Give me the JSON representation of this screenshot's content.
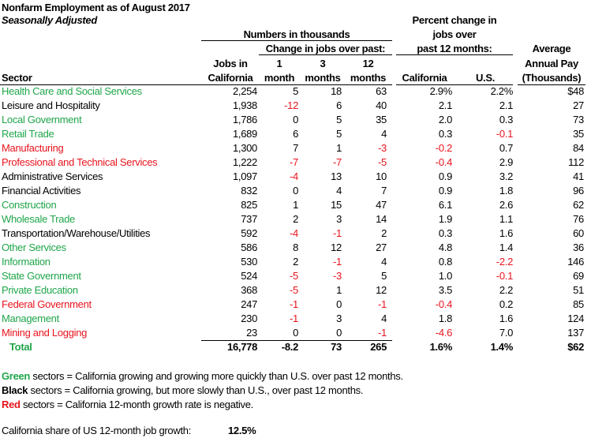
{
  "title": "Nonfarm Employment as of August 2017",
  "subtitle": "Seasonally Adjusted",
  "headers": {
    "numbers_group": "Numbers in thousands",
    "change_group": "Change in jobs over past:",
    "percent_group_1": "Percent change in",
    "percent_group_2": "jobs over",
    "percent_group_3": "past 12 months:",
    "sector": "Sector",
    "jobs_1": "Jobs in",
    "jobs_2": "California",
    "m1_1": "1",
    "m1_2": "month",
    "m3_1": "3",
    "m3_2": "months",
    "m12_1": "12",
    "m12_2": "months",
    "pct_ca": "California",
    "pct_us": "U.S.",
    "pay_1": "Average",
    "pay_2": "Annual Pay",
    "pay_3": "(Thousands)"
  },
  "colors": {
    "green": "#1fa64a",
    "red": "#e8141e",
    "black": "#000000"
  },
  "rows": [
    {
      "sector": "Health Care and Social Services",
      "status": "green",
      "jobs": "2,254",
      "m1": "5",
      "m3": "18",
      "m12": "63",
      "ca": "2.9%",
      "us": "2.2%",
      "pay": "$48"
    },
    {
      "sector": "Leisure and Hospitality",
      "status": "black",
      "jobs": "1,938",
      "m1": "-12",
      "m3": "6",
      "m12": "40",
      "ca": "2.1",
      "us": "2.1",
      "pay": "27"
    },
    {
      "sector": "Local Government",
      "status": "green",
      "jobs": "1,786",
      "m1": "0",
      "m3": "5",
      "m12": "35",
      "ca": "2.0",
      "us": "0.3",
      "pay": "73"
    },
    {
      "sector": "Retail Trade",
      "status": "green",
      "jobs": "1,689",
      "m1": "6",
      "m3": "5",
      "m12": "4",
      "ca": "0.3",
      "us": "-0.1",
      "pay": "35"
    },
    {
      "sector": "Manufacturing",
      "status": "red",
      "jobs": "1,300",
      "m1": "7",
      "m3": "1",
      "m12": "-3",
      "ca": "-0.2",
      "us": "0.7",
      "pay": "84"
    },
    {
      "sector": "Professional and Technical Services",
      "status": "red",
      "jobs": "1,222",
      "m1": "-7",
      "m3": "-7",
      "m12": "-5",
      "ca": "-0.4",
      "us": "2.9",
      "pay": "112"
    },
    {
      "sector": "Administrative Services",
      "status": "black",
      "jobs": "1,097",
      "m1": "-4",
      "m3": "13",
      "m12": "10",
      "ca": "0.9",
      "us": "3.2",
      "pay": "41"
    },
    {
      "sector": "Financial Activities",
      "status": "black",
      "jobs": "832",
      "m1": "0",
      "m3": "4",
      "m12": "7",
      "ca": "0.9",
      "us": "1.8",
      "pay": "96"
    },
    {
      "sector": "Construction",
      "status": "green",
      "jobs": "825",
      "m1": "1",
      "m3": "15",
      "m12": "47",
      "ca": "6.1",
      "us": "2.6",
      "pay": "62"
    },
    {
      "sector": "Wholesale Trade",
      "status": "green",
      "jobs": "737",
      "m1": "2",
      "m3": "3",
      "m12": "14",
      "ca": "1.9",
      "us": "1.1",
      "pay": "76"
    },
    {
      "sector": "Transportation/Warehouse/Utilities",
      "status": "black",
      "jobs": "592",
      "m1": "-4",
      "m3": "-1",
      "m12": "2",
      "ca": "0.3",
      "us": "1.6",
      "pay": "60"
    },
    {
      "sector": "Other Services",
      "status": "green",
      "jobs": "586",
      "m1": "8",
      "m3": "12",
      "m12": "27",
      "ca": "4.8",
      "us": "1.4",
      "pay": "36"
    },
    {
      "sector": "Information",
      "status": "green",
      "jobs": "530",
      "m1": "2",
      "m3": "-1",
      "m12": "4",
      "ca": "0.8",
      "us": "-2.2",
      "pay": "146"
    },
    {
      "sector": "State Government",
      "status": "green",
      "jobs": "524",
      "m1": "-5",
      "m3": "-3",
      "m12": "5",
      "ca": "1.0",
      "us": "-0.1",
      "pay": "69"
    },
    {
      "sector": "Private Education",
      "status": "green",
      "jobs": "368",
      "m1": "-5",
      "m3": "1",
      "m12": "12",
      "ca": "3.5",
      "us": "2.2",
      "pay": "51"
    },
    {
      "sector": "Federal Government",
      "status": "red",
      "jobs": "247",
      "m1": "-1",
      "m3": "0",
      "m12": "-1",
      "ca": "-0.4",
      "us": "0.2",
      "pay": "85"
    },
    {
      "sector": "Management",
      "status": "green",
      "jobs": "230",
      "m1": "-1",
      "m3": "3",
      "m12": "4",
      "ca": "1.8",
      "us": "1.6",
      "pay": "124"
    },
    {
      "sector": "Mining and Logging",
      "status": "red",
      "jobs": "23",
      "m1": "0",
      "m3": "0",
      "m12": "-1",
      "ca": "-4.6",
      "us": "7.0",
      "pay": "137"
    }
  ],
  "total": {
    "sector": "Total",
    "status": "green",
    "jobs": "16,778",
    "m1": "-8.2",
    "m3": "73",
    "m12": "265",
    "ca": "1.6%",
    "us": "1.4%",
    "pay": "$62"
  },
  "legend": {
    "green_word": "Green",
    "green_text": " sectors = California growing and growing more quickly than U.S. over past 12 months.",
    "black_word": "Black",
    "black_text": " sectors = California growing, but more slowly than U.S., over past 12 months.",
    "red_word": "Red",
    "red_text": " sectors = California 12-month growth rate is negative."
  },
  "share": {
    "label": "California share of US 12-month job growth:",
    "value": "12.5%"
  }
}
